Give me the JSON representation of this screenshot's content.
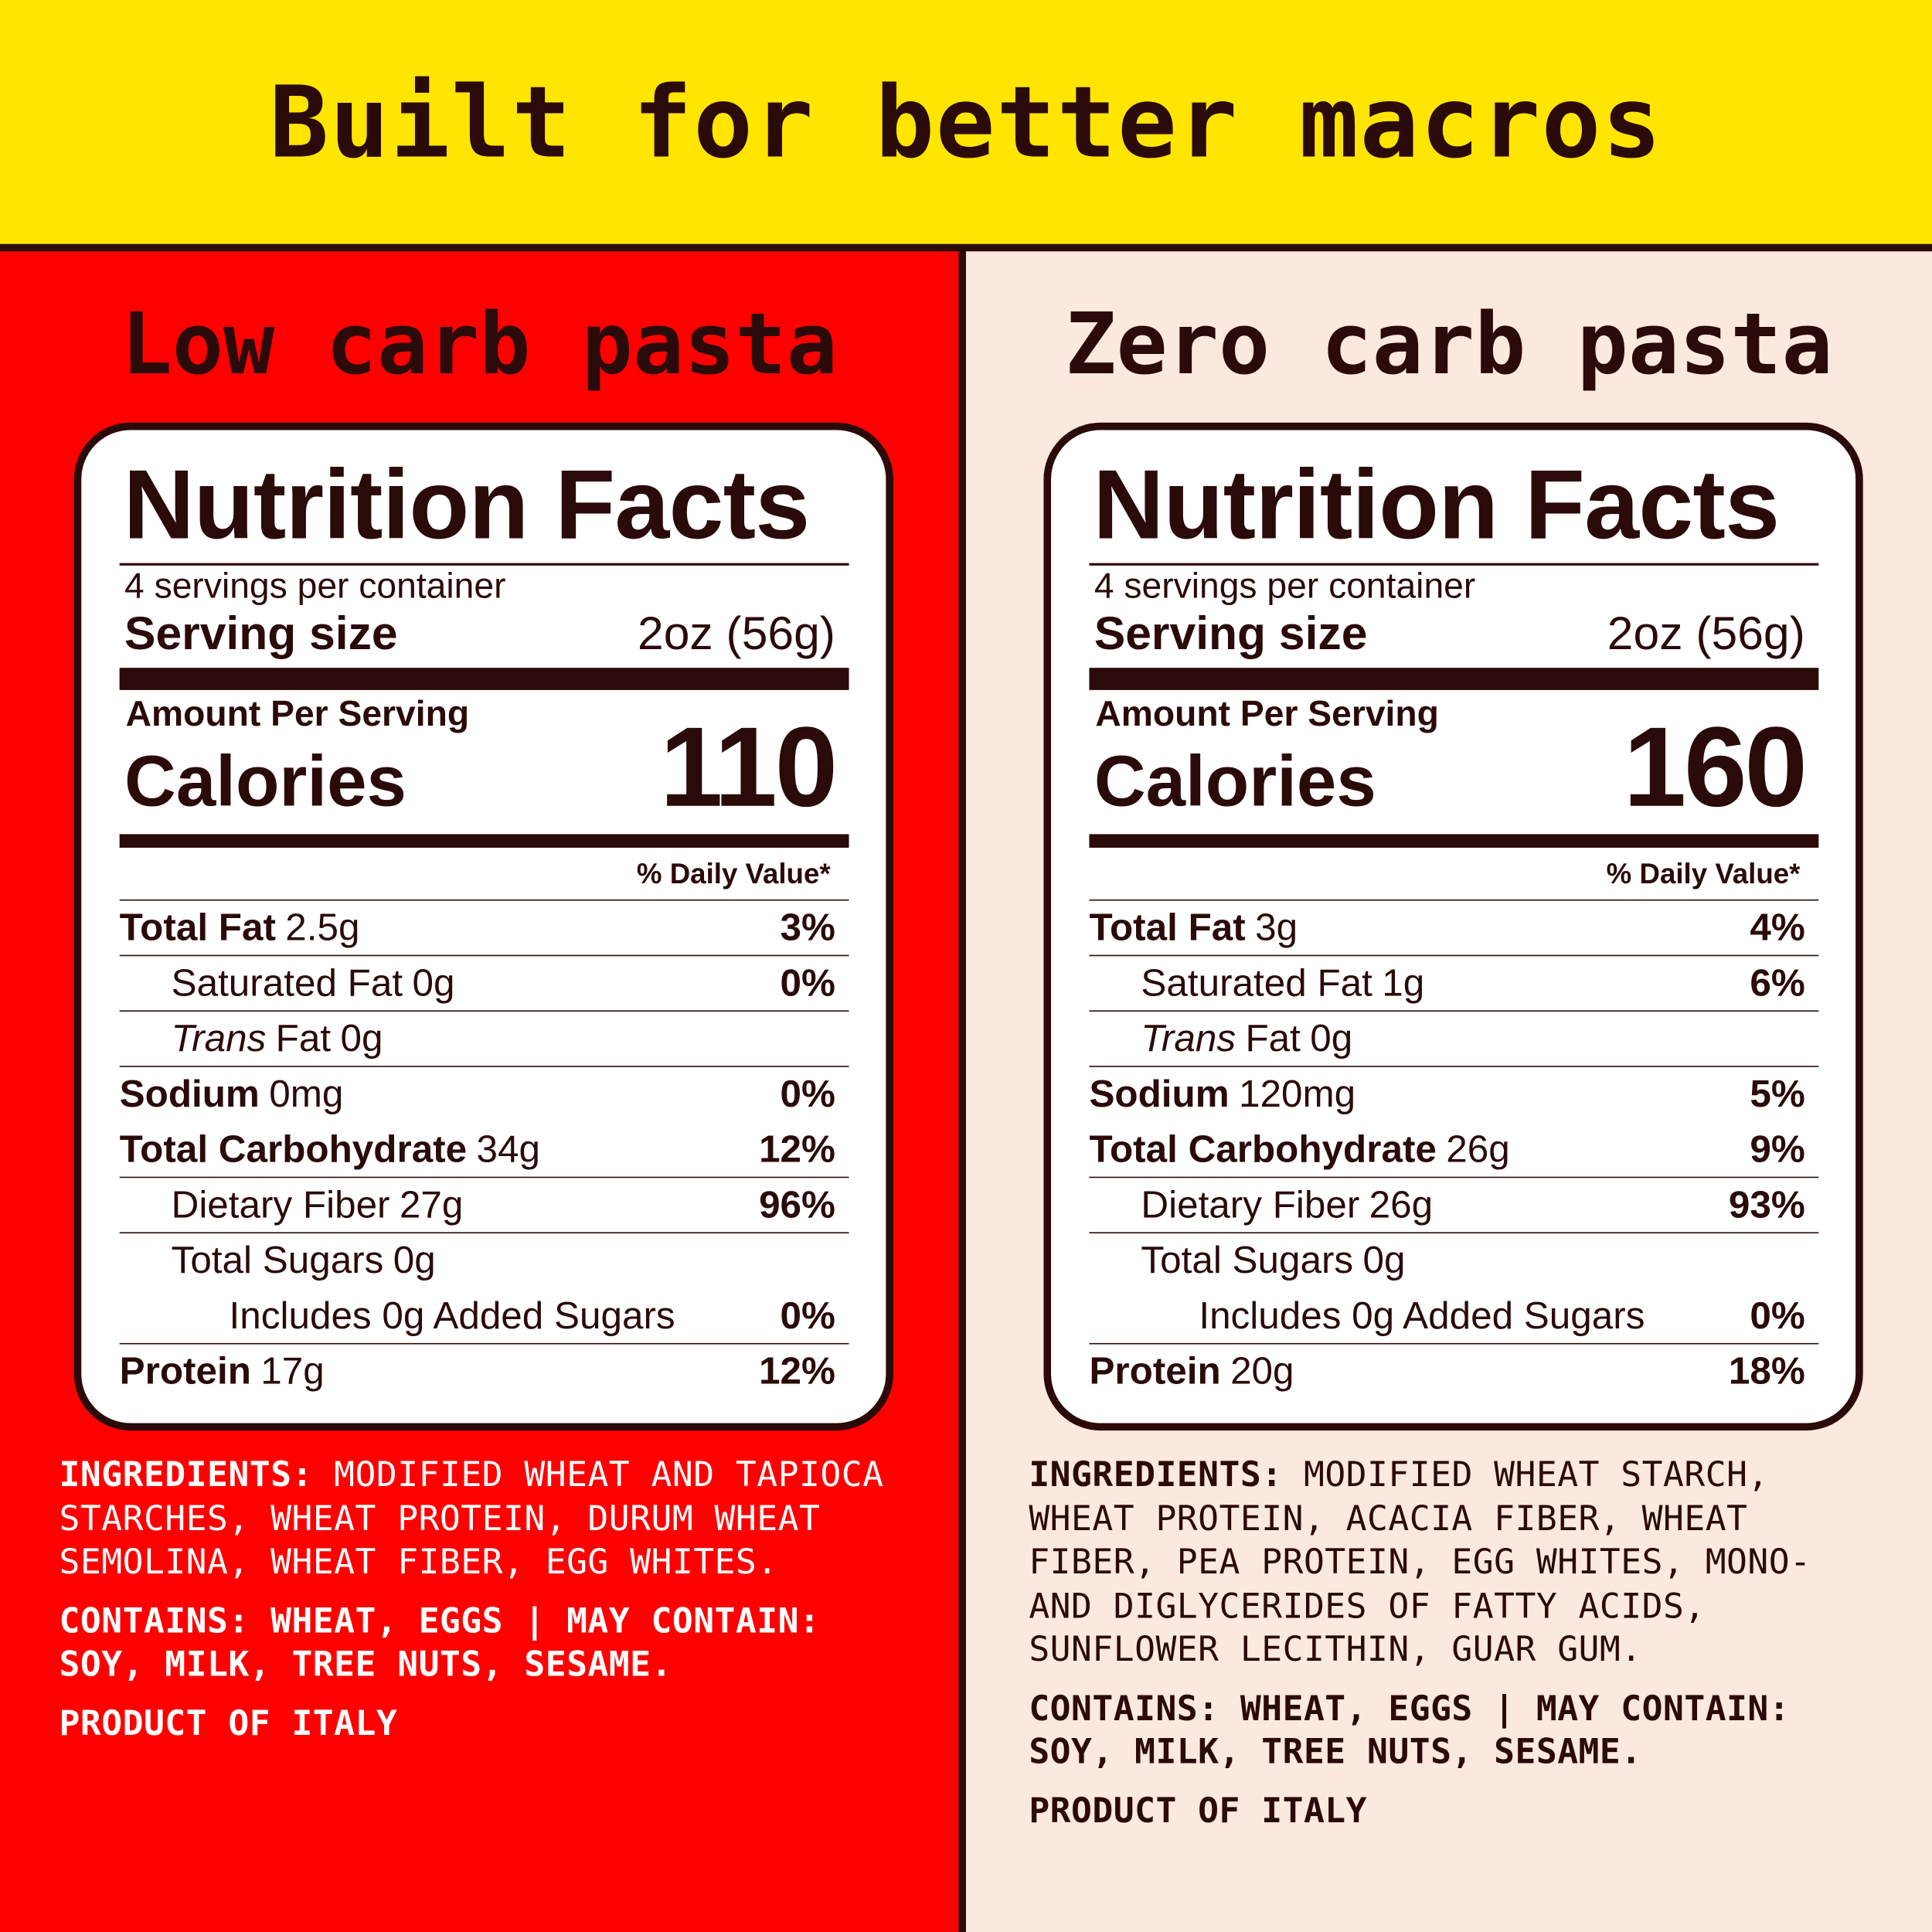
{
  "header": {
    "title": "Built for better macros"
  },
  "panels": [
    {
      "title": "Low carb pasta",
      "nutrition": {
        "heading": "Nutrition Facts",
        "servings": "4 servings per container",
        "serving_size_label": "Serving size",
        "serving_size": "2oz (56g)",
        "amount_per_serving": "Amount Per Serving",
        "calories_label": "Calories",
        "calories": 110,
        "daily_value_header": "% Daily Value*",
        "rows": [
          {
            "name": "Total Fat",
            "amount": "2.5g",
            "dv": "3%",
            "sub": [
              {
                "name": "Saturated Fat",
                "amount": "0g",
                "dv": "0%"
              },
              {
                "italic": "Trans",
                "name": "Fat",
                "amount": "0g"
              }
            ]
          },
          {
            "name": "Sodium",
            "amount": "0mg",
            "dv": "0%"
          },
          {
            "name": "Total Carbohydrate",
            "amount": "34g",
            "dv": "12%",
            "sub": [
              {
                "name": "Dietary Fiber",
                "amount": "27g",
                "dv": "96%"
              },
              {
                "name": "Total Sugars",
                "amount": "0g",
                "sub": [
                  {
                    "name": "Includes 0g Added Sugars",
                    "dv": "0%"
                  }
                ]
              }
            ]
          },
          {
            "name": "Protein",
            "amount": "17g",
            "dv": "12%"
          }
        ]
      },
      "ingredients": {
        "label": "INGREDIENTS:",
        "text": "MODIFIED WHEAT AND TAPIOCA STARCHES, WHEAT PROTEIN, DURUM WHEAT SEMOLINA, WHEAT FIBER, EGG WHITES."
      },
      "contains": "CONTAINS: WHEAT, EGGS | MAY CONTAIN: SOY, MILK, TREE NUTS, SESAME.",
      "product": "PRODUCT OF ITALY"
    },
    {
      "title": "Zero carb pasta",
      "nutrition": {
        "heading": "Nutrition Facts",
        "servings": "4 servings per container",
        "serving_size_label": "Serving size",
        "serving_size": "2oz (56g)",
        "amount_per_serving": "Amount Per Serving",
        "calories_label": "Calories",
        "calories": 160,
        "daily_value_header": "% Daily Value*",
        "rows": [
          {
            "name": "Total Fat",
            "amount": "3g",
            "dv": "4%",
            "sub": [
              {
                "name": "Saturated Fat",
                "amount": "1g",
                "dv": "6%"
              },
              {
                "italic": "Trans",
                "name": "Fat",
                "amount": "0g"
              }
            ]
          },
          {
            "name": "Sodium",
            "amount": "120mg",
            "dv": "5%"
          },
          {
            "name": "Total Carbohydrate",
            "amount": "26g",
            "dv": "9%",
            "sub": [
              {
                "name": "Dietary Fiber",
                "amount": "26g",
                "dv": "93%"
              },
              {
                "name": "Total Sugars",
                "amount": "0g",
                "sub": [
                  {
                    "name": "Includes 0g Added Sugars",
                    "dv": "0%"
                  }
                ]
              }
            ]
          },
          {
            "name": "Protein",
            "amount": "20g",
            "dv": "18%"
          }
        ]
      },
      "ingredients": {
        "label": "INGREDIENTS:",
        "text": "MODIFIED WHEAT STARCH, WHEAT PROTEIN, ACACIA FIBER, WHEAT FIBER, PEA PROTEIN, EGG WHITES, MONO- AND DIGLYCERIDES OF FATTY ACIDS, SUNFLOWER LECITHIN, GUAR GUM."
      },
      "contains": "CONTAINS: WHEAT, EGGS | MAY CONTAIN: SOY, MILK, TREE NUTS, SESAME.",
      "product": "PRODUCT OF ITALY"
    }
  ]
}
